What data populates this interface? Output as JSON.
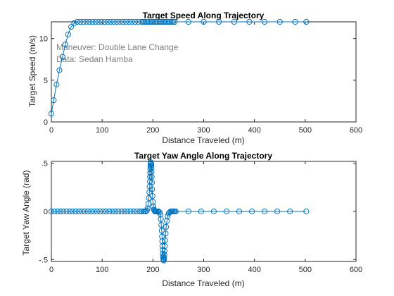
{
  "colors": {
    "series": "#0072BD",
    "axis": "#262626",
    "annotation": "#808080"
  },
  "chart_data": [
    {
      "type": "line",
      "title": "Target Speed Along Trajectory",
      "xlabel": "Distance Traveled (m)",
      "ylabel": "Target Speed (m/s)",
      "xlim": [
        0,
        600
      ],
      "ylim": [
        0,
        12
      ],
      "xticks": [
        0,
        100,
        200,
        300,
        400,
        500,
        600
      ],
      "yticks": [
        0,
        5,
        10
      ],
      "grid": false,
      "annotations": [
        "Maneuver: Double Lane Change",
        "Data: Sedan Hamba"
      ],
      "x": [
        0,
        4.7,
        10.2,
        15.9,
        22,
        27.5,
        33,
        39,
        45,
        51,
        57,
        63,
        69,
        75,
        81,
        87,
        93,
        99,
        105,
        111,
        117,
        123,
        129,
        135,
        141,
        147,
        153,
        159,
        165,
        171,
        177,
        180,
        183,
        186,
        189,
        192,
        195,
        198,
        201,
        204,
        207,
        210,
        213,
        216,
        219,
        222,
        225,
        228,
        231,
        234,
        237,
        240,
        243,
        270,
        300,
        330,
        360,
        390,
        420,
        450,
        480,
        502
      ],
      "y": [
        1,
        2.6,
        4.5,
        6.2,
        7.8,
        9.3,
        10.5,
        11.4,
        11.85,
        12,
        12,
        12,
        12,
        12,
        12,
        12,
        12,
        12,
        12,
        12,
        12,
        12,
        12,
        12,
        12,
        12,
        12,
        12,
        12,
        12,
        12,
        12,
        12,
        12,
        12,
        12,
        12,
        12,
        12,
        12,
        12,
        12,
        12,
        12,
        12,
        12,
        12,
        12,
        12,
        12,
        12,
        12,
        12,
        12,
        12,
        12,
        12,
        12,
        12,
        12,
        12,
        12
      ]
    },
    {
      "type": "line",
      "title": "Target Yaw Angle Along Trajectory",
      "xlabel": "Distance Traveled (m)",
      "ylabel": "Target Yaw Angle (rad)",
      "xlim": [
        0,
        600
      ],
      "ylim": [
        -0.52,
        0.52
      ],
      "xticks": [
        0,
        100,
        200,
        300,
        400,
        500,
        600
      ],
      "yticks": [
        -0.5,
        0,
        0.5
      ],
      "grid": false,
      "x": [
        0,
        6,
        12,
        18,
        24,
        30,
        36,
        42,
        48,
        54,
        60,
        66,
        72,
        78,
        84,
        90,
        96,
        102,
        108,
        114,
        120,
        126,
        132,
        138,
        144,
        150,
        156,
        162,
        168,
        174,
        178,
        181,
        184,
        186,
        188,
        189.5,
        191,
        192,
        193,
        193.6,
        194,
        194.3,
        194.6,
        194.9,
        195.2,
        195.5,
        195.8,
        196.1,
        196.4,
        196.7,
        197,
        197.3,
        197.6,
        198,
        198.5,
        199.2,
        200,
        201,
        202,
        203,
        204,
        205.5,
        207,
        209,
        211,
        213,
        214.5,
        215.6,
        216.5,
        217.3,
        218,
        218.5,
        218.9,
        219.3,
        219.7,
        220.1,
        220.5,
        220.9,
        221.3,
        221.7,
        222.1,
        222.5,
        223,
        223.5,
        224,
        225,
        226,
        227.5,
        229,
        231,
        233,
        235,
        237,
        239,
        241,
        243,
        245,
        270,
        295,
        320,
        345,
        370,
        395,
        420,
        445,
        470,
        502
      ],
      "y": [
        0,
        0,
        0,
        0,
        0,
        0,
        0,
        0,
        0,
        0,
        0,
        0,
        0,
        0,
        0,
        0,
        0,
        0,
        0,
        0,
        0,
        0,
        0,
        0,
        0,
        0,
        0,
        0,
        0,
        0,
        0,
        0,
        0,
        0,
        0.01,
        0.03,
        0.08,
        0.14,
        0.2,
        0.26,
        0.31,
        0.36,
        0.4,
        0.44,
        0.47,
        0.49,
        0.5,
        0.51,
        0.5,
        0.48,
        0.45,
        0.41,
        0.36,
        0.3,
        0.23,
        0.16,
        0.1,
        0.05,
        0.02,
        0.01,
        0,
        0,
        0,
        0,
        0,
        -0.01,
        -0.03,
        -0.08,
        -0.14,
        -0.2,
        -0.26,
        -0.31,
        -0.36,
        -0.4,
        -0.44,
        -0.47,
        -0.49,
        -0.5,
        -0.51,
        -0.5,
        -0.48,
        -0.45,
        -0.41,
        -0.36,
        -0.3,
        -0.23,
        -0.16,
        -0.1,
        -0.05,
        -0.02,
        -0.01,
        0,
        0,
        0,
        0,
        0,
        0,
        0,
        0,
        0,
        0,
        0,
        0,
        0,
        0,
        0,
        0
      ]
    }
  ]
}
